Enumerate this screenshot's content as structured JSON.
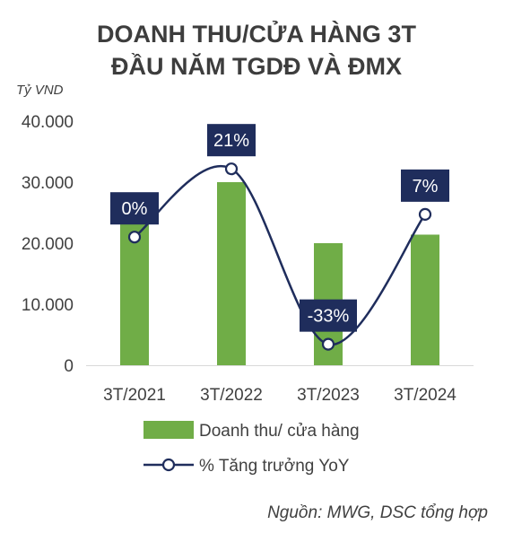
{
  "chart_data": {
    "type": "bar",
    "title_lines": [
      "DOANH THU/CỬA HÀNG 3T",
      "ĐẦU NĂM TGDĐ VÀ ĐMX"
    ],
    "ylabel": "Tỷ VND",
    "categories": [
      "3T/2021",
      "3T/2022",
      "3T/2023",
      "3T/2024"
    ],
    "ylim": [
      0,
      40000
    ],
    "yticks": [
      0,
      10000,
      20000,
      30000,
      40000
    ],
    "ytick_labels": [
      "0",
      "10.000",
      "20.000",
      "30.000",
      "40.000"
    ],
    "series": [
      {
        "name": "Doanh thu/ cửa hàng",
        "type": "bar",
        "color": "#70ad47",
        "values": [
          24800,
          30000,
          20000,
          21400
        ]
      },
      {
        "name": "% Tăng trưởng YoY",
        "type": "line",
        "color": "#1f2d5c",
        "values": [
          0,
          21,
          -33,
          7
        ],
        "labels": [
          "0%",
          "21%",
          "-33%",
          "7%"
        ]
      }
    ],
    "legend": "bottom",
    "grid": false,
    "source": "Nguồn: MWG, DSC tổng hợp"
  }
}
